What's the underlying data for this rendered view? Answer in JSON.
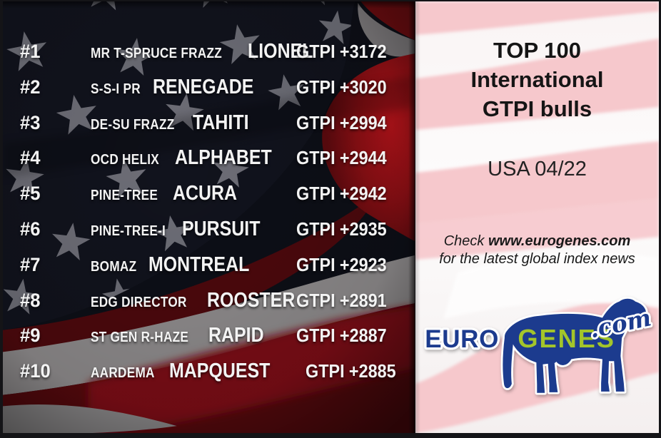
{
  "left_panel": {
    "gtpi_label": "GTPI",
    "rows": [
      {
        "rank": "#1",
        "prefix": "MR T-SPRUCE FRAZZ",
        "name": "LIONEL",
        "score": "+3172"
      },
      {
        "rank": "#2",
        "prefix": "S-S-I PR",
        "name": "RENEGADE",
        "score": "+3020"
      },
      {
        "rank": "#3",
        "prefix": "DE-SU FRAZZ",
        "name": "TAHITI",
        "score": "+2994"
      },
      {
        "rank": "#4",
        "prefix": "OCD HELIX",
        "name": "ALPHABET",
        "score": "+2944"
      },
      {
        "rank": "#5",
        "prefix": "PINE-TREE",
        "name": "ACURA",
        "score": "+2942"
      },
      {
        "rank": "#6",
        "prefix": "PINE-TREE-I",
        "name": "PURSUIT",
        "score": "+2935"
      },
      {
        "rank": "#7",
        "prefix": "BOMAZ",
        "name": "MONTREAL",
        "score": "+2923"
      },
      {
        "rank": "#8",
        "prefix": "EDG DIRECTOR",
        "name": "ROOSTER",
        "score": "+2891"
      },
      {
        "rank": "#9",
        "prefix": "ST GEN R-HAZE",
        "name": "RAPID",
        "score": "+2887"
      },
      {
        "rank": "#10",
        "prefix": "AARDEMA",
        "name": "MAPQUEST",
        "score": "+2885"
      }
    ]
  },
  "right_panel": {
    "title_lines": [
      "TOP 100",
      "International",
      "GTPI bulls"
    ],
    "date": "USA 04/22",
    "note_prefix": "Check ",
    "note_url": "www.eurogenes.com",
    "note_line2": "for the latest global index news",
    "logo": {
      "euro": "EURO",
      "genes": "GENES",
      "com": ".com"
    }
  },
  "colors": {
    "logo_navy": "#1c3a8e",
    "logo_lime": "#a3c52c",
    "flag_red_bright": "#b5131a",
    "flag_red_dark": "#55090d",
    "pink_stripe": "#f6c8cc",
    "panel_text_dark": "#151515",
    "list_text": "#f3f3f3"
  }
}
